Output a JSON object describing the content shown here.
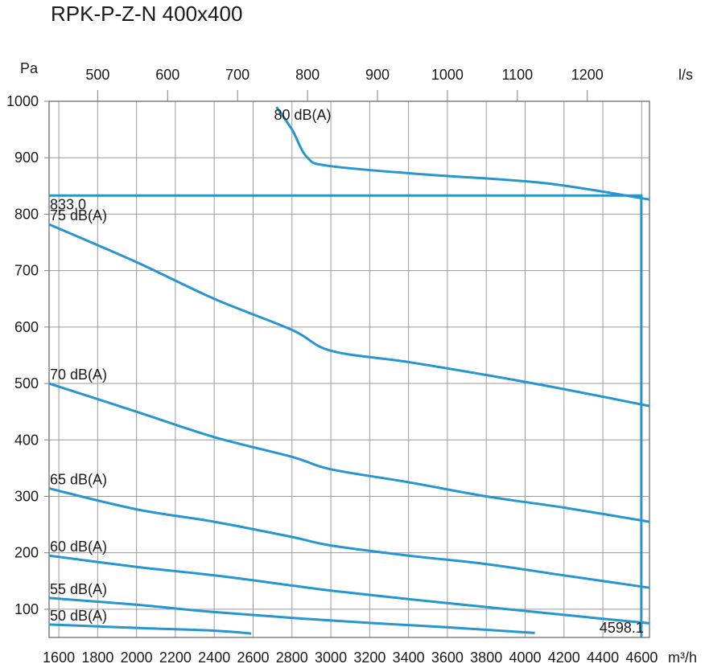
{
  "chart_data": {
    "type": "line",
    "title": "RPK-P-Z-N 400x400",
    "xlabel": "m³/h",
    "ylabel": "Pa",
    "x2label": "l/s",
    "xlim": [
      1550,
      4640
    ],
    "ylim": [
      50,
      1000
    ],
    "x_ticks": [
      1600,
      1800,
      2000,
      2200,
      2400,
      2600,
      2800,
      3000,
      3200,
      3400,
      3600,
      3800,
      4000,
      4200,
      4400,
      4600
    ],
    "y_ticks": [
      1000,
      900,
      800,
      700,
      600,
      500,
      400,
      300,
      200,
      100
    ],
    "x2_ticks": [
      500,
      600,
      700,
      800,
      900,
      1000,
      1100,
      1200
    ],
    "grid": true,
    "series": [
      {
        "name": "80 dB(A)",
        "points": [
          [
            2720,
            990
          ],
          [
            2800,
            950
          ],
          [
            2880,
            900
          ],
          [
            3000,
            885
          ],
          [
            3500,
            870
          ],
          [
            4100,
            855
          ],
          [
            4640,
            826
          ]
        ]
      },
      {
        "name": "75 dB(A)",
        "points": [
          [
            1550,
            782
          ],
          [
            2000,
            715
          ],
          [
            2400,
            650
          ],
          [
            2800,
            595
          ],
          [
            3000,
            558
          ],
          [
            3400,
            538
          ],
          [
            3800,
            515
          ],
          [
            4200,
            490
          ],
          [
            4640,
            460
          ]
        ]
      },
      {
        "name": "70 dB(A)",
        "points": [
          [
            1550,
            500
          ],
          [
            2000,
            450
          ],
          [
            2400,
            405
          ],
          [
            2800,
            370
          ],
          [
            3000,
            348
          ],
          [
            3400,
            325
          ],
          [
            3800,
            300
          ],
          [
            4200,
            280
          ],
          [
            4640,
            255
          ]
        ]
      },
      {
        "name": "65 dB(A)",
        "points": [
          [
            1550,
            314
          ],
          [
            2000,
            277
          ],
          [
            2400,
            255
          ],
          [
            2800,
            228
          ],
          [
            3000,
            213
          ],
          [
            3400,
            195
          ],
          [
            3800,
            180
          ],
          [
            4200,
            160
          ],
          [
            4640,
            138
          ]
        ]
      },
      {
        "name": "60 dB(A)",
        "points": [
          [
            1550,
            195
          ],
          [
            2000,
            175
          ],
          [
            2400,
            160
          ],
          [
            2800,
            142
          ],
          [
            3000,
            133
          ],
          [
            3400,
            118
          ],
          [
            3800,
            104
          ],
          [
            4200,
            90
          ],
          [
            4640,
            75
          ]
        ]
      },
      {
        "name": "55 dB(A)",
        "points": [
          [
            1550,
            120
          ],
          [
            2000,
            108
          ],
          [
            2400,
            95
          ],
          [
            3000,
            80
          ],
          [
            3600,
            68
          ],
          [
            4050,
            58
          ]
        ]
      },
      {
        "name": "50 dB(A)",
        "points": [
          [
            1550,
            73
          ],
          [
            2000,
            67
          ],
          [
            2400,
            62
          ],
          [
            2590,
            57
          ]
        ]
      }
    ],
    "operating_point": {
      "x": 4598.1,
      "y": 833.0,
      "x_label": "4598.1",
      "y_label": "833.0"
    },
    "colors": {
      "curve": "#2596cf",
      "grid": "#9a9a9a",
      "frame": "#808080",
      "text": "#1a1a1a"
    }
  }
}
